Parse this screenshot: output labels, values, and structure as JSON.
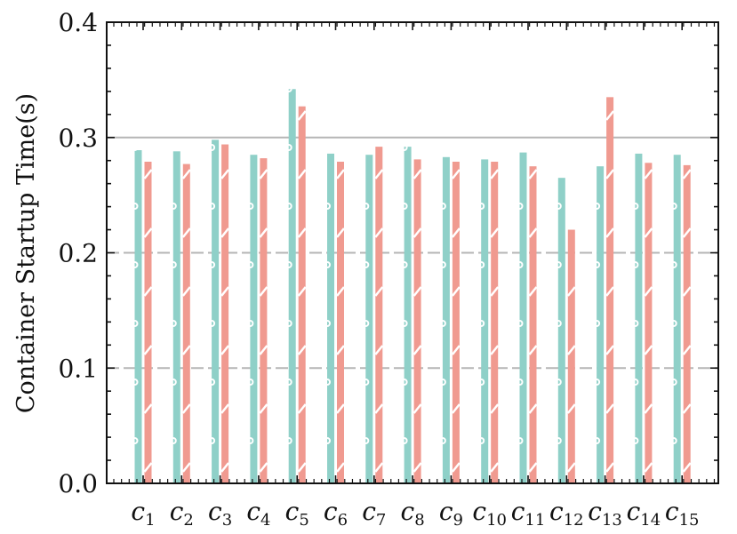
{
  "chart_data": {
    "type": "bar",
    "title": "",
    "xlabel": "",
    "ylabel": "Container Startup Time(s)",
    "ylim": [
      0,
      0.4
    ],
    "yticks": [
      "0.0",
      "0.1",
      "0.2",
      "0.3",
      "0.4"
    ],
    "yticks_values": [
      0,
      0.1,
      0.2,
      0.3,
      0.4
    ],
    "grid": "horizontal dashed at major ticks",
    "legend": "none",
    "categories": [
      "c",
      "c",
      "c",
      "c",
      "c",
      "c",
      "c",
      "c",
      "c",
      "c",
      "c",
      "c",
      "c",
      "c",
      "c"
    ],
    "category_subscripts": [
      "1",
      "2",
      "3",
      "4",
      "5",
      "6",
      "7",
      "8",
      "9",
      "10",
      "11",
      "12",
      "13",
      "14",
      "15"
    ],
    "series": [
      {
        "color": "#8fd0c8",
        "values": [
          0.289,
          0.288,
          0.298,
          0.285,
          0.342,
          0.286,
          0.285,
          0.292,
          0.283,
          0.281,
          0.287,
          0.265,
          0.275,
          0.286,
          0.285
        ]
      },
      {
        "color": "#f09a90",
        "values": [
          0.279,
          0.277,
          0.294,
          0.282,
          0.327,
          0.279,
          0.292,
          0.281,
          0.279,
          0.279,
          0.275,
          0.22,
          0.335,
          0.278,
          0.276
        ]
      }
    ]
  }
}
